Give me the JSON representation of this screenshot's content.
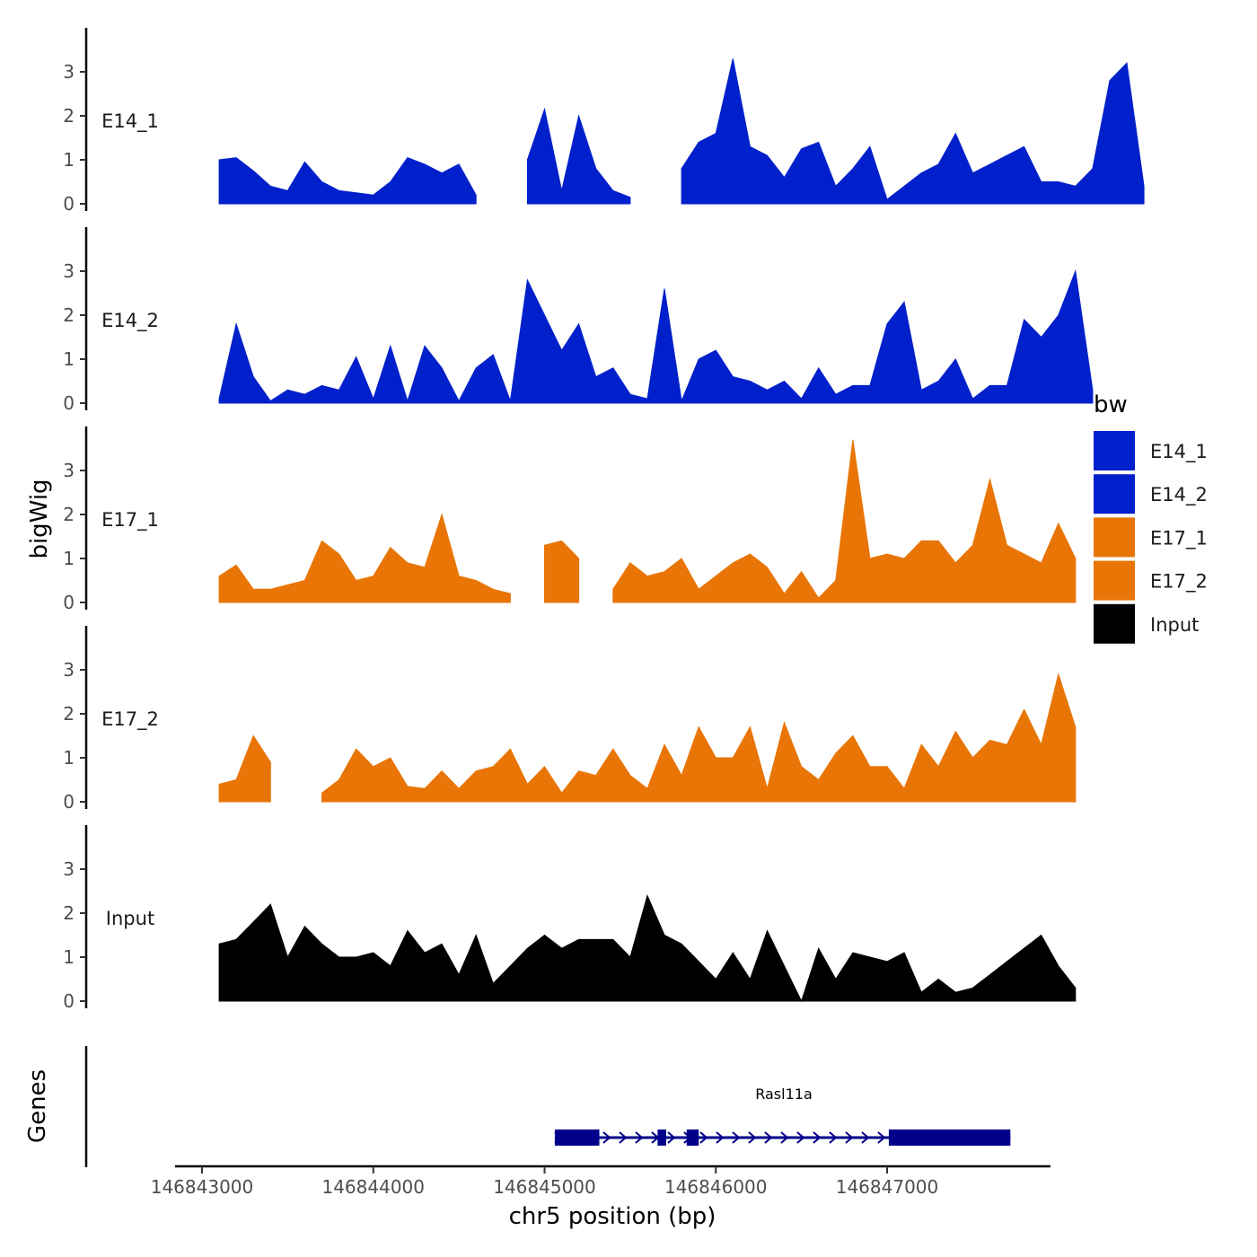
{
  "chart_data": {
    "type": "area",
    "title": "",
    "xlabel": "chr5 position (bp)",
    "ylabel": "bigWig",
    "xlim": [
      146842850,
      146848000
    ],
    "ylim": [
      0,
      4
    ],
    "x_ticks": [
      146843000,
      146844000,
      146845000,
      146846000,
      146847000
    ],
    "x_tick_labels": [
      "146843000",
      "146844000",
      "146845000",
      "146846000",
      "146847000"
    ],
    "y_ticks": [
      0,
      1,
      2,
      3
    ],
    "y_tick_labels": [
      "0",
      "1",
      "2",
      "3"
    ],
    "legend": {
      "title": "bw",
      "position": "right",
      "entries": [
        {
          "label": "E14_1",
          "color": "#0020CC"
        },
        {
          "label": "E14_2",
          "color": "#0020CC"
        },
        {
          "label": "E17_1",
          "color": "#E87505"
        },
        {
          "label": "E17_2",
          "color": "#E87505"
        },
        {
          "label": "Input",
          "color": "#000000"
        }
      ]
    },
    "x_start": 146843100,
    "x_step": 100,
    "series": [
      {
        "name": "E14_1",
        "color": "#0020CC",
        "values": [
          1.0,
          1.05,
          0.75,
          0.4,
          0.3,
          0.95,
          0.5,
          0.3,
          0.25,
          0.2,
          0.5,
          1.05,
          0.9,
          0.7,
          0.9,
          0.2,
          null,
          null,
          1.0,
          2.15,
          0.3,
          2.0,
          0.8,
          0.3,
          0.15,
          null,
          null,
          0.8,
          1.4,
          1.6,
          3.3,
          1.3,
          1.1,
          0.6,
          1.25,
          1.4,
          0.4,
          0.8,
          1.3,
          0.1,
          0.4,
          0.7,
          0.9,
          1.6,
          0.7,
          0.9,
          1.1,
          1.3,
          0.5,
          0.5,
          0.4,
          0.8,
          2.8,
          3.2,
          0.4
        ]
      },
      {
        "name": "E14_2",
        "color": "#0020CC",
        "values": [
          0.1,
          1.8,
          0.6,
          0.05,
          0.3,
          0.2,
          0.4,
          0.3,
          1.05,
          0.1,
          1.3,
          0.05,
          1.3,
          0.8,
          0.05,
          0.8,
          1.1,
          0.05,
          2.8,
          2.0,
          1.2,
          1.8,
          0.6,
          0.8,
          0.2,
          0.1,
          2.6,
          0.05,
          1.0,
          1.2,
          0.6,
          0.5,
          0.3,
          0.5,
          0.1,
          0.8,
          0.2,
          0.4,
          0.4,
          1.8,
          2.3,
          0.3,
          0.5,
          1.0,
          0.1,
          0.4,
          0.4,
          1.9,
          1.5,
          2.0,
          3.0,
          0.3
        ]
      },
      {
        "name": "E17_1",
        "color": "#E87505",
        "values": [
          0.6,
          0.85,
          0.3,
          0.3,
          0.4,
          0.5,
          1.4,
          1.1,
          0.5,
          0.6,
          1.25,
          0.9,
          0.8,
          2.0,
          0.6,
          0.5,
          0.3,
          0.2,
          null,
          1.3,
          1.4,
          1.0,
          null,
          0.3,
          0.9,
          0.6,
          0.7,
          1.0,
          0.3,
          0.6,
          0.9,
          1.1,
          0.8,
          0.2,
          0.7,
          0.1,
          0.5,
          3.7,
          1.0,
          1.1,
          1.0,
          1.4,
          1.4,
          0.9,
          1.3,
          2.8,
          1.3,
          1.1,
          0.9,
          1.8,
          1.0
        ]
      },
      {
        "name": "E17_2",
        "color": "#E87505",
        "values": [
          0.4,
          0.5,
          1.5,
          0.9,
          null,
          null,
          0.2,
          0.5,
          1.2,
          0.8,
          1.0,
          0.35,
          0.3,
          0.7,
          0.3,
          0.7,
          0.8,
          1.2,
          0.4,
          0.8,
          0.2,
          0.7,
          0.6,
          1.2,
          0.6,
          0.3,
          1.3,
          0.6,
          1.7,
          1.0,
          1.0,
          1.7,
          0.3,
          1.8,
          0.8,
          0.5,
          1.1,
          1.5,
          0.8,
          0.8,
          0.3,
          1.3,
          0.8,
          1.6,
          1.0,
          1.4,
          1.3,
          2.1,
          1.3,
          2.9,
          1.7
        ]
      },
      {
        "name": "Input",
        "color": "#000000",
        "values": [
          1.3,
          1.4,
          1.8,
          2.2,
          1.0,
          1.7,
          1.3,
          1.0,
          1.0,
          1.1,
          0.8,
          1.6,
          1.1,
          1.3,
          0.6,
          1.5,
          0.4,
          0.8,
          1.2,
          1.5,
          1.2,
          1.4,
          1.4,
          1.4,
          1.0,
          2.4,
          1.5,
          1.3,
          0.9,
          0.5,
          1.1,
          0.5,
          1.6,
          0.8,
          0.0,
          1.2,
          0.5,
          1.1,
          1.0,
          0.9,
          1.1,
          0.2,
          0.5,
          0.2,
          0.3,
          0.6,
          0.9,
          1.2,
          1.5,
          0.8,
          0.3
        ]
      }
    ],
    "genes_panel": {
      "ylabel": "Genes",
      "gene": {
        "name": "Rasl11a",
        "strand": "+",
        "start": 146845060,
        "end": 146847720,
        "exons": [
          [
            146845060,
            146845320
          ],
          [
            146845660,
            146845710
          ],
          [
            146845830,
            146845900
          ],
          [
            146847010,
            146847720
          ]
        ]
      }
    }
  }
}
